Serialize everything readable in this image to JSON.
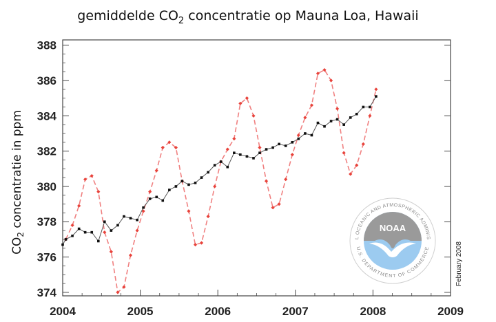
{
  "colors": {
    "annual_series": "#111111",
    "monthly_series": "#f08080",
    "monthly_marker": "#e8433b",
    "logo_blue": "#9ccbf0",
    "logo_gray": "#9a9a9a"
  },
  "icons": [
    "noaa-logo-icon"
  ],
  "logo": {
    "name": "NOAA",
    "ring_text_top": "NATIONAL OCEANIC AND ATMOSPHERIC ADMINISTRATION",
    "ring_text_bottom": "U.S. DEPARTMENT OF COMMERCE"
  },
  "credit": "February 2008",
  "chart_data": {
    "type": "line",
    "title_parts": [
      "gemiddelde CO",
      "2",
      " concentratie op Mauna Loa, Hawaii"
    ],
    "ylabel_parts": [
      "CO",
      "2",
      " concentratie in ppm"
    ],
    "xlim": [
      2004,
      2009
    ],
    "ylim": [
      373.8,
      388.3
    ],
    "x_ticks": [
      2004,
      2005,
      2006,
      2007,
      2008,
      2009
    ],
    "y_ticks": [
      374,
      376,
      378,
      380,
      382,
      384,
      386,
      388
    ],
    "grid": false,
    "series": [
      {
        "style": "red dashed with diamond markers (monthly)",
        "x": [
          2004.04,
          2004.125,
          2004.21,
          2004.29,
          2004.375,
          2004.46,
          2004.54,
          2004.625,
          2004.71,
          2004.79,
          2004.875,
          2004.96,
          2005.04,
          2005.125,
          2005.21,
          2005.29,
          2005.375,
          2005.46,
          2005.54,
          2005.625,
          2005.71,
          2005.79,
          2005.875,
          2005.96,
          2006.04,
          2006.125,
          2006.21,
          2006.29,
          2006.375,
          2006.46,
          2006.54,
          2006.625,
          2006.71,
          2006.79,
          2006.875,
          2006.96,
          2007.04,
          2007.125,
          2007.21,
          2007.29,
          2007.375,
          2007.46,
          2007.54,
          2007.625,
          2007.71,
          2007.79,
          2007.875,
          2007.96,
          2008.04
        ],
        "values": [
          377.0,
          377.8,
          378.9,
          380.4,
          380.6,
          379.7,
          377.4,
          376.3,
          374.0,
          374.3,
          376.1,
          377.5,
          378.6,
          379.7,
          380.9,
          382.2,
          382.5,
          382.2,
          380.3,
          378.6,
          376.7,
          376.8,
          378.3,
          380.0,
          381.4,
          382.1,
          382.7,
          384.7,
          385.0,
          384.0,
          382.2,
          380.3,
          378.8,
          379.0,
          380.4,
          381.8,
          382.9,
          383.9,
          384.6,
          386.4,
          386.6,
          386.0,
          384.4,
          381.9,
          380.7,
          381.2,
          382.4,
          384.0,
          385.5
        ]
      },
      {
        "style": "black solid with square markers (seasonally corrected)",
        "x": [
          2004.0,
          2004.04,
          2004.125,
          2004.21,
          2004.29,
          2004.375,
          2004.46,
          2004.54,
          2004.625,
          2004.71,
          2004.79,
          2004.875,
          2004.96,
          2005.04,
          2005.125,
          2005.21,
          2005.29,
          2005.375,
          2005.46,
          2005.54,
          2005.625,
          2005.71,
          2005.79,
          2005.875,
          2005.96,
          2006.04,
          2006.125,
          2006.21,
          2006.29,
          2006.375,
          2006.46,
          2006.54,
          2006.625,
          2006.71,
          2006.79,
          2006.875,
          2006.96,
          2007.04,
          2007.125,
          2007.21,
          2007.29,
          2007.375,
          2007.46,
          2007.54,
          2007.625,
          2007.71,
          2007.79,
          2007.875,
          2007.96,
          2008.04
        ],
        "values": [
          376.7,
          377.0,
          377.2,
          377.6,
          377.4,
          377.4,
          376.9,
          378.0,
          377.5,
          377.8,
          378.3,
          378.2,
          378.1,
          378.8,
          379.3,
          379.4,
          379.2,
          379.8,
          380.0,
          380.3,
          380.1,
          380.2,
          380.5,
          380.8,
          381.2,
          381.4,
          381.1,
          381.9,
          381.8,
          381.7,
          381.6,
          381.9,
          382.1,
          382.2,
          382.4,
          382.3,
          382.5,
          382.7,
          383.0,
          382.9,
          383.6,
          383.4,
          383.7,
          383.8,
          383.5,
          383.9,
          384.1,
          384.5,
          384.5,
          385.1
        ]
      }
    ]
  }
}
